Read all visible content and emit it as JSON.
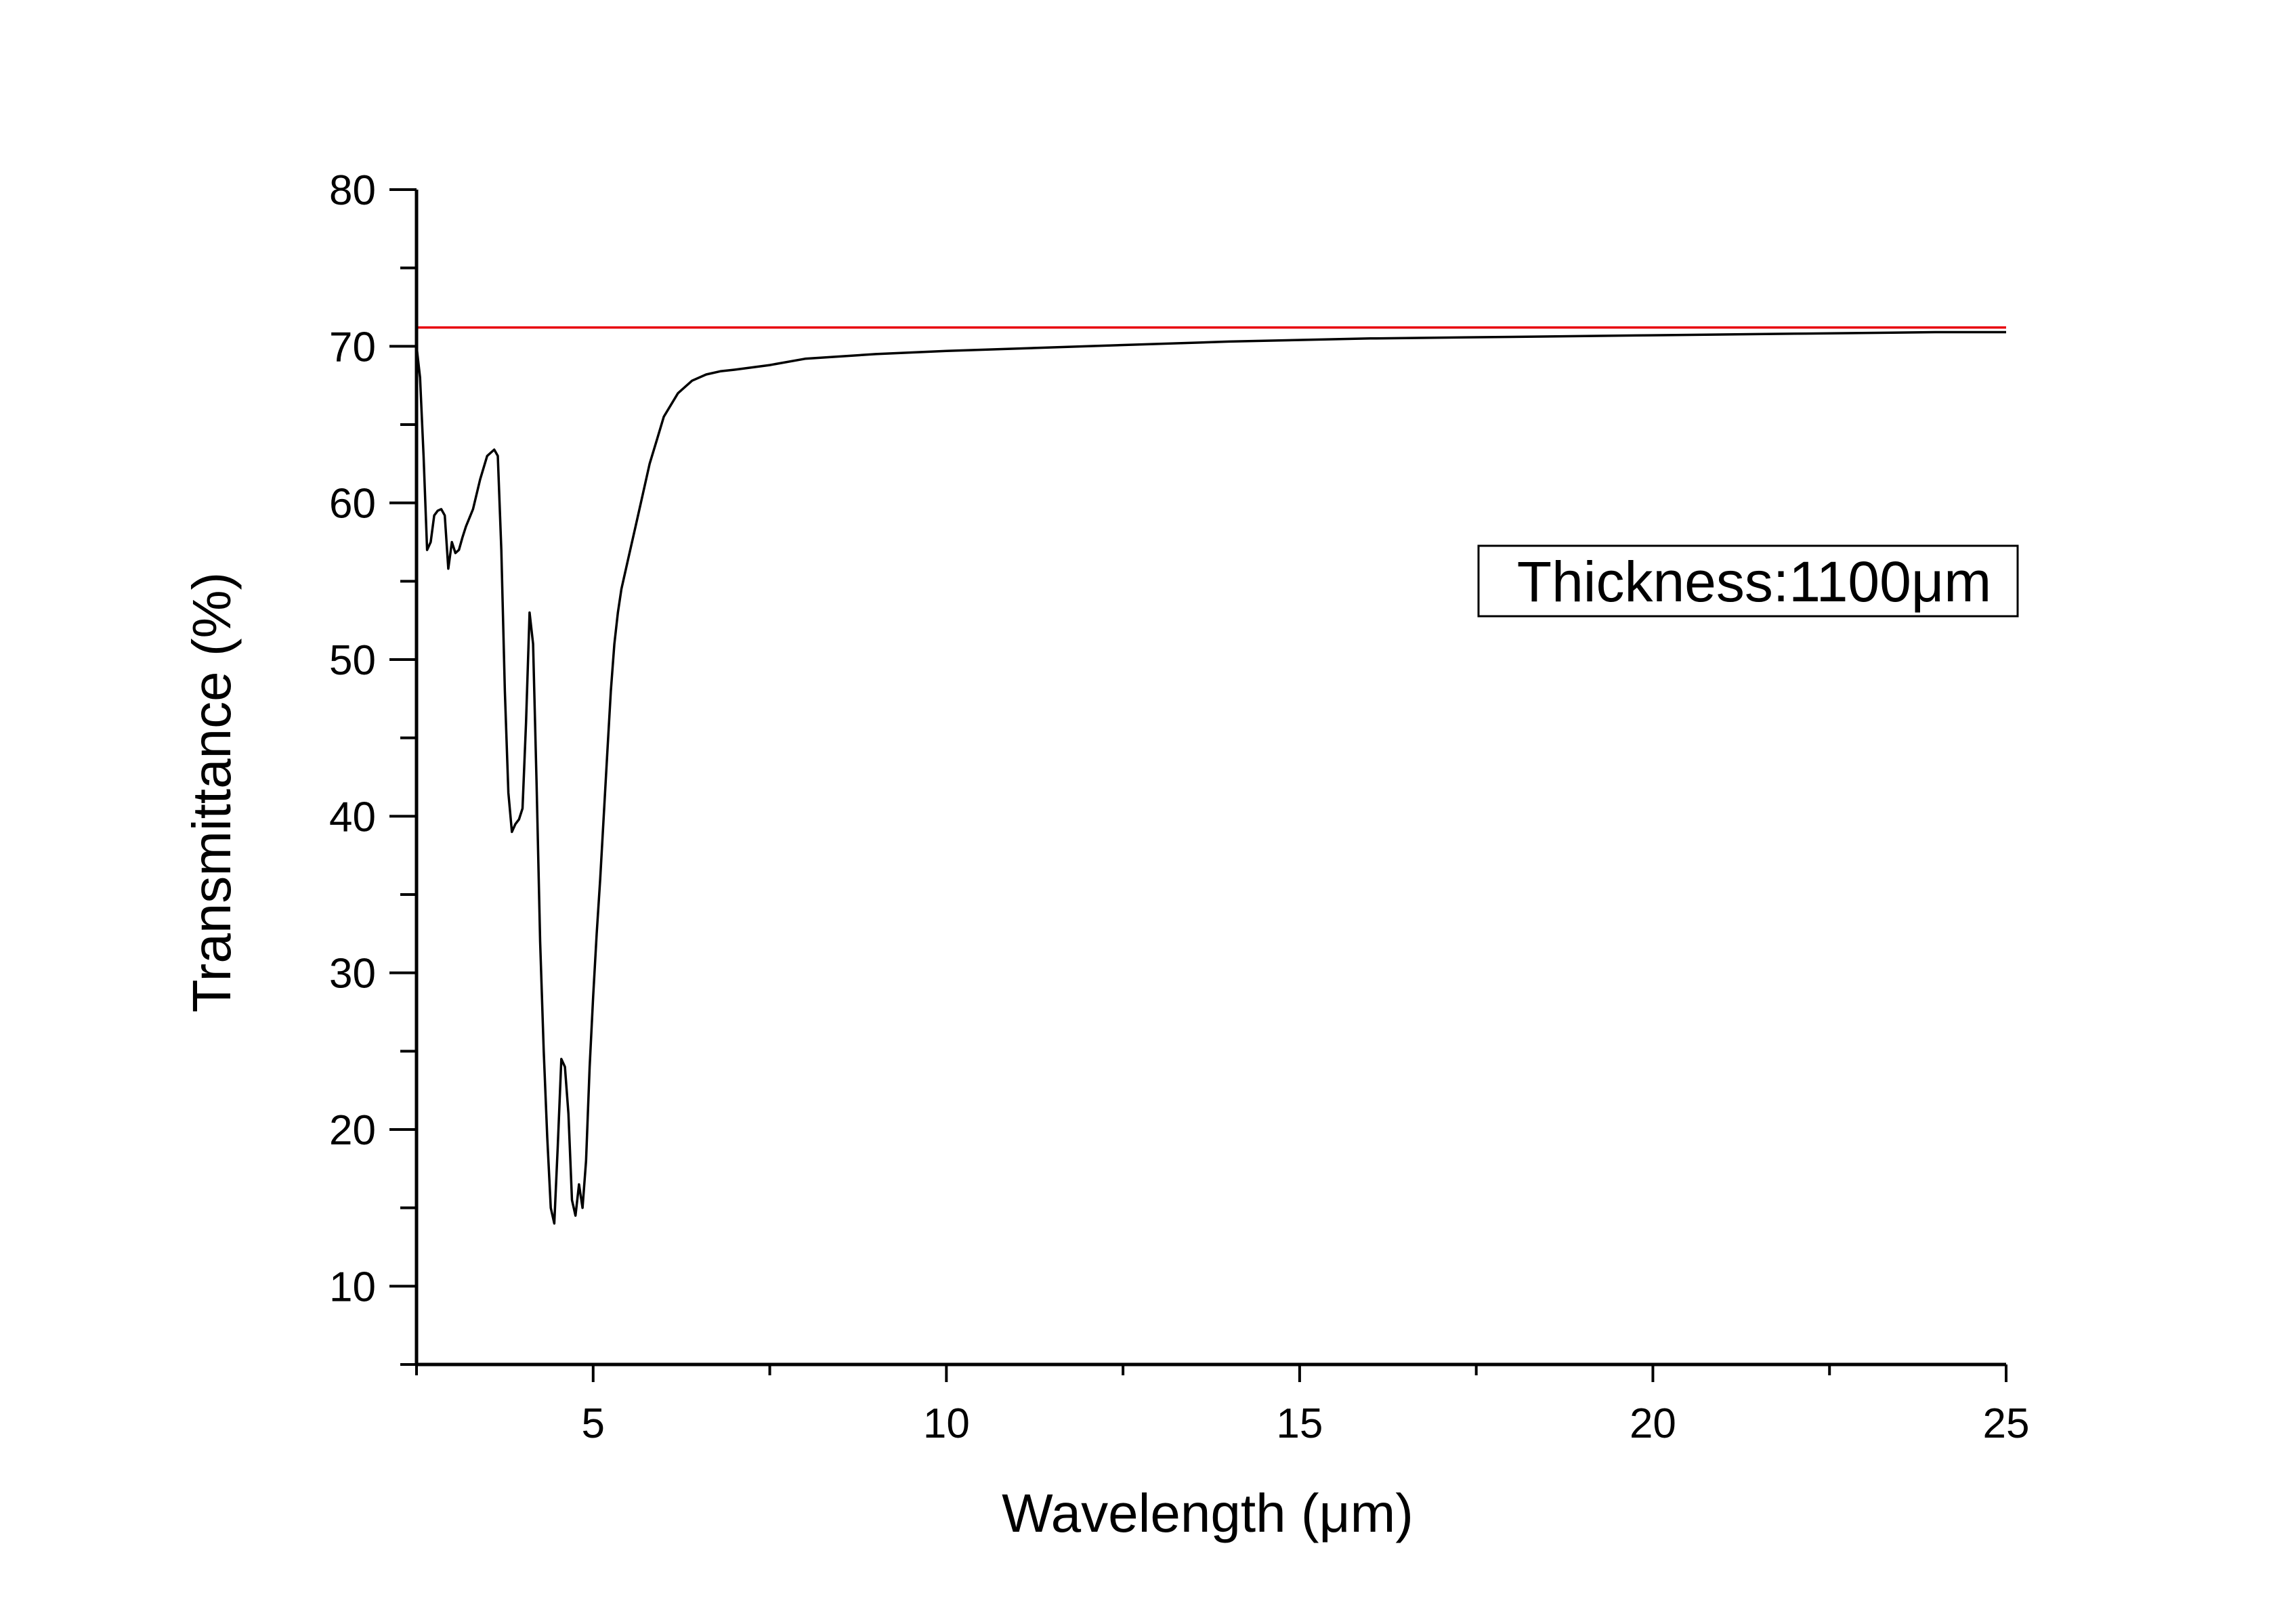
{
  "chart_data": {
    "type": "line",
    "title": "",
    "xlabel": "Wavelength (μm)",
    "ylabel": "Transmittance (%)",
    "xlim": [
      2.5,
      25
    ],
    "ylim": [
      5,
      80
    ],
    "xticks": [
      5,
      10,
      15,
      20,
      25
    ],
    "yticks": [
      10,
      20,
      30,
      40,
      50,
      60,
      70,
      80
    ],
    "grid": false,
    "legend": {
      "placement": "right",
      "entries": [
        "Thickness:1100μm"
      ]
    },
    "colors": {
      "spectrum": "#000000",
      "reference": "#e8000b",
      "axes": "#000000"
    },
    "series": [
      {
        "color": "#000000",
        "x": [
          2.5,
          2.55,
          2.6,
          2.65,
          2.7,
          2.75,
          2.8,
          2.85,
          2.9,
          2.95,
          3.0,
          3.05,
          3.1,
          3.15,
          3.2,
          3.3,
          3.4,
          3.5,
          3.6,
          3.65,
          3.7,
          3.75,
          3.8,
          3.85,
          3.9,
          3.95,
          4.0,
          4.05,
          4.1,
          4.15,
          4.2,
          4.25,
          4.3,
          4.35,
          4.4,
          4.45,
          4.5,
          4.55,
          4.6,
          4.65,
          4.7,
          4.75,
          4.8,
          4.85,
          4.9,
          4.95,
          5.0,
          5.05,
          5.1,
          5.15,
          5.2,
          5.25,
          5.3,
          5.35,
          5.4,
          5.5,
          5.6,
          5.7,
          5.8,
          5.9,
          6.0,
          6.2,
          6.4,
          6.6,
          6.8,
          7.0,
          7.5,
          8.0,
          9.0,
          10.0,
          12.0,
          14.0,
          16.0,
          18.0,
          20.0,
          22.0,
          24.0,
          25.0
        ],
        "values": [
          70.0,
          68.0,
          63.0,
          57.0,
          57.5,
          59.2,
          59.5,
          59.6,
          59.2,
          55.8,
          57.5,
          56.8,
          57.0,
          57.8,
          58.5,
          59.6,
          61.5,
          63.0,
          63.4,
          63.0,
          57.0,
          48.0,
          41.5,
          39.0,
          39.5,
          39.8,
          40.5,
          46.0,
          53.0,
          51.0,
          42.0,
          32.0,
          25.0,
          19.5,
          15.0,
          14.0,
          19.0,
          24.5,
          24.0,
          21.0,
          15.5,
          14.5,
          16.5,
          15.0,
          18.0,
          24.0,
          28.5,
          32.5,
          36.0,
          40.0,
          44.0,
          48.0,
          51.0,
          53.0,
          54.5,
          56.5,
          58.5,
          60.5,
          62.5,
          64.0,
          65.5,
          67.0,
          67.8,
          68.2,
          68.4,
          68.5,
          68.8,
          69.2,
          69.5,
          69.7,
          70.0,
          70.3,
          70.5,
          70.6,
          70.7,
          70.8,
          70.9,
          70.9
        ]
      },
      {
        "color": "#e8000b",
        "x": [
          2.5,
          25.0
        ],
        "values": [
          71.2,
          71.2
        ]
      }
    ]
  }
}
